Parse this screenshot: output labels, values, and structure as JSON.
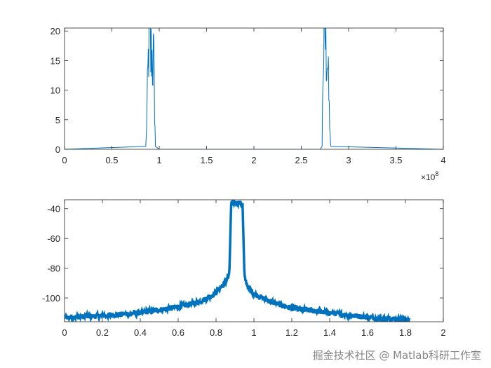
{
  "watermark": "掘金技术社区 @ Matlab科研工作室",
  "chart_data": [
    {
      "type": "line",
      "title": "",
      "xlabel": "",
      "ylabel": "",
      "xlim": [
        0,
        400000000
      ],
      "ylim": [
        0,
        20.5
      ],
      "x_exponent_label": "×10",
      "x_exponent_power": "8",
      "xticks": [
        0,
        0.5,
        1,
        1.5,
        2,
        2.5,
        3,
        3.5,
        4
      ],
      "xtick_labels": [
        "0",
        "0.5",
        "1",
        "1.5",
        "2",
        "2.5",
        "3",
        "3.5",
        "4"
      ],
      "yticks": [
        0,
        5,
        10,
        15,
        20
      ],
      "ytick_labels": [
        "0",
        "5",
        "10",
        "15",
        "20"
      ],
      "grid": false,
      "color": "#0072BD",
      "series": [
        {
          "x": [
            0,
            86000000,
            88000000,
            89000000,
            90000000,
            91000000,
            92000000,
            93000000,
            94000000,
            95000000,
            96000000,
            100000000,
            270000000,
            272000000,
            273000000,
            274000000,
            275000000,
            276000000,
            277000000,
            278000000,
            279000000,
            281000000,
            400000000
          ],
          "y": [
            0,
            0.5,
            12,
            18,
            20.5,
            15,
            17,
            14,
            16,
            8,
            0.5,
            0,
            0,
            0.5,
            14,
            18,
            20.5,
            16,
            17,
            15,
            9,
            0.5,
            0
          ]
        }
      ]
    },
    {
      "type": "line",
      "title": "",
      "xlabel": "",
      "ylabel": "",
      "xlim": [
        0,
        2
      ],
      "ylim": [
        -116,
        -34
      ],
      "xticks": [
        0,
        0.2,
        0.4,
        0.6,
        0.8,
        1,
        1.2,
        1.4,
        1.6,
        1.8,
        2
      ],
      "xtick_labels": [
        "0",
        "0.2",
        "0.4",
        "0.6",
        "0.8",
        "1",
        "1.2",
        "1.4",
        "1.6",
        "1.8",
        "2"
      ],
      "yticks": [
        -40,
        -60,
        -80,
        -100
      ],
      "ytick_labels": [
        "-40",
        "-60",
        "-80",
        "-100"
      ],
      "grid": false,
      "color": "#0072BD",
      "series": [
        {
          "x": [
            0,
            0.2,
            0.4,
            0.6,
            0.7,
            0.76,
            0.8,
            0.84,
            0.87,
            0.88,
            0.9,
            0.92,
            0.94,
            0.95,
            0.97,
            1.0,
            1.06,
            1.1,
            1.2,
            1.4,
            1.6,
            1.82
          ],
          "y": [
            -113,
            -112,
            -110,
            -106,
            -103,
            -100,
            -96,
            -91,
            -85,
            -37,
            -36,
            -36,
            -37,
            -86,
            -93,
            -97,
            -101,
            -103,
            -107,
            -110,
            -113,
            -115
          ]
        }
      ]
    }
  ]
}
